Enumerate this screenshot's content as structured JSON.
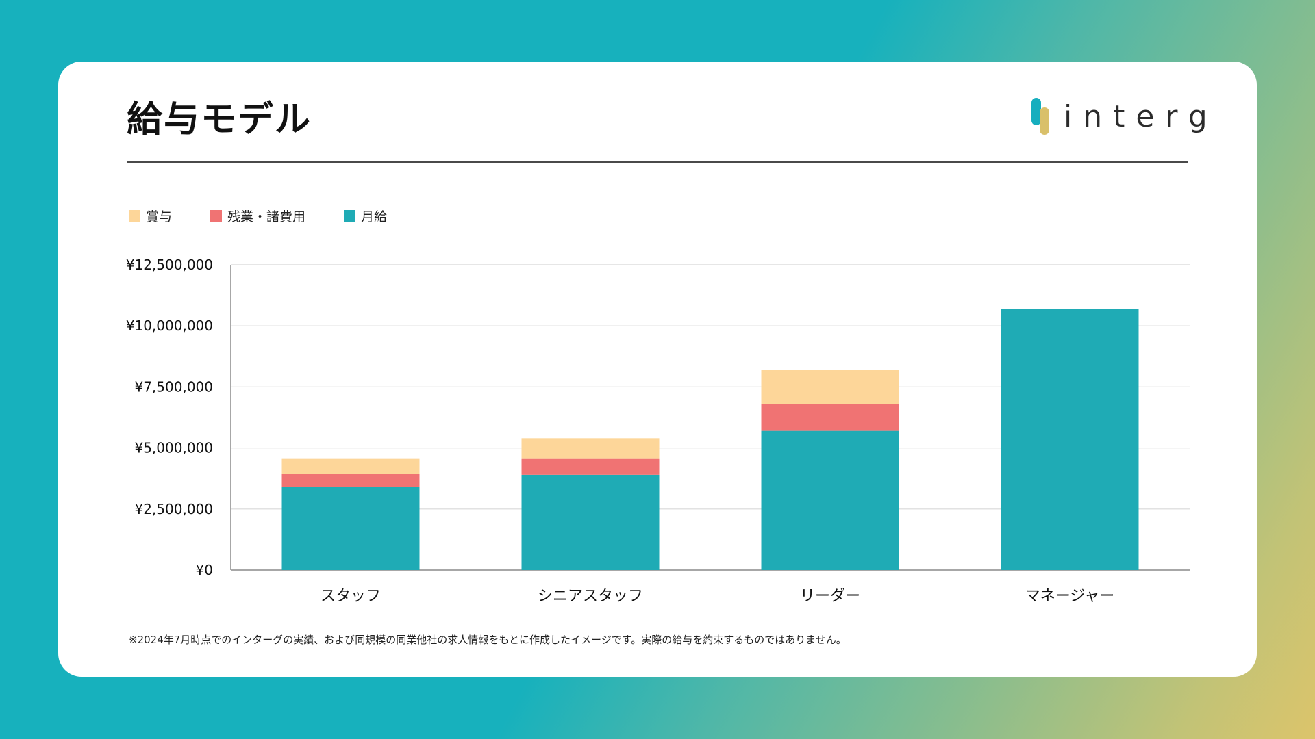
{
  "title": "給与モデル",
  "logo": {
    "text": "interg",
    "colors": {
      "teal": "#16aebe",
      "gold": "#d9c06a"
    }
  },
  "footnote": "※2024年7月時点でのインターグの実績、および同規模の同業他社の求人情報をもとに作成したイメージです。実際の給与を約束するものではありません。",
  "chart_data": {
    "type": "bar",
    "stacked": true,
    "categories": [
      "スタッフ",
      "シニアスタッフ",
      "リーダー",
      "マネージャー"
    ],
    "series": [
      {
        "name": "月給",
        "color": "#1fabb5",
        "values": [
          3400000,
          3900000,
          5700000,
          10700000
        ]
      },
      {
        "name": "残業・諸費用",
        "color": "#f07373",
        "values": [
          550000,
          650000,
          1100000,
          0
        ]
      },
      {
        "name": "賞与",
        "color": "#fdd699",
        "values": [
          600000,
          850000,
          1400000,
          0
        ]
      }
    ],
    "legend_order": [
      "賞与",
      "残業・諸費用",
      "月給"
    ],
    "ylim": [
      0,
      12500000
    ],
    "yticks": [
      0,
      2500000,
      5000000,
      7500000,
      10000000,
      12500000
    ],
    "ytick_labels": [
      "¥0",
      "¥2,500,000",
      "¥5,000,000",
      "¥7,500,000",
      "¥10,000,000",
      "¥12,500,000"
    ],
    "grid": true,
    "legend_position": "top-left",
    "xlabel": "",
    "ylabel": ""
  }
}
